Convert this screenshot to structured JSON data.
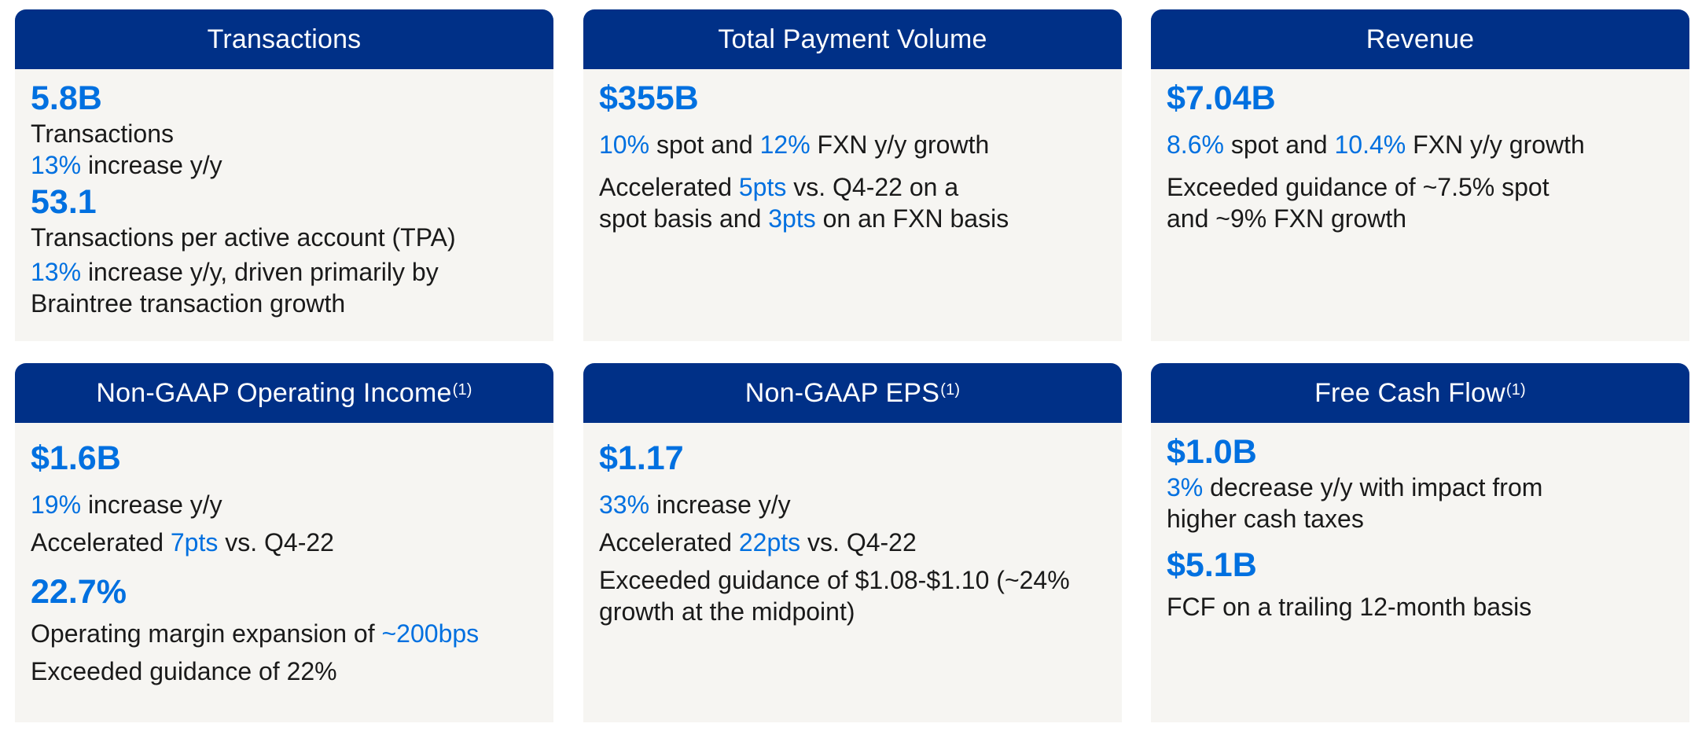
{
  "cards": {
    "transactions": {
      "title": "Transactions",
      "value1": "5.8B",
      "label1": "Transactions",
      "hl1": "13%",
      "text1": " increase y/y",
      "value2": "53.1",
      "label2": "Transactions per active account (TPA)",
      "hl2": "13%",
      "text2a": " increase y/y, driven primarily by",
      "text2b": "Braintree transaction growth"
    },
    "tpv": {
      "title": "Total Payment Volume",
      "value": "$355B",
      "hl_a": "10%",
      "text_a": " spot and ",
      "hl_b": "12%",
      "text_b": " FXN y/y growth",
      "text_c1": "Accelerated ",
      "hl_c": "5pts",
      "text_c2": " vs. Q4-22 on a",
      "text_d1": "spot basis and ",
      "hl_d": "3pts",
      "text_d2": " on an FXN basis"
    },
    "revenue": {
      "title": "Revenue",
      "value": "$7.04B",
      "hl_a": "8.6%",
      "text_a": " spot and ",
      "hl_b": "10.4%",
      "text_b": " FXN y/y growth",
      "text_c": "Exceeded guidance of ~7.5% spot",
      "text_d": "and ~9% FXN growth"
    },
    "op_income": {
      "title": "Non-GAAP Operating Income",
      "sup": "(1)",
      "value1": "$1.6B",
      "hl1": "19%",
      "text1": " increase y/y",
      "text2a": "Accelerated ",
      "hl2": "7pts",
      "text2b": " vs. Q4-22",
      "value2": "22.7%",
      "text3a": "Operating margin expansion of ",
      "hl3": "~200bps",
      "text4": "Exceeded guidance of 22%"
    },
    "eps": {
      "title": "Non-GAAP EPS",
      "sup": "(1)",
      "value": "$1.17",
      "hl1": "33%",
      "text1": " increase y/y",
      "text2a": "Accelerated ",
      "hl2": "22pts",
      "text2b": " vs. Q4-22",
      "text3": "Exceeded guidance of $1.08-$1.10 (~24%",
      "text4": "growth at the midpoint)"
    },
    "fcf": {
      "title": "Free Cash Flow",
      "sup": "(1)",
      "value1": "$1.0B",
      "hl1": "3%",
      "text1a": " decrease y/y with impact from",
      "text1b": "higher cash taxes",
      "value2": "$5.1B",
      "text2": "FCF on a trailing 12-month basis"
    }
  },
  "colors": {
    "header": "#003087",
    "accent": "#0070e0",
    "card_bg": "#f6f5f2"
  }
}
